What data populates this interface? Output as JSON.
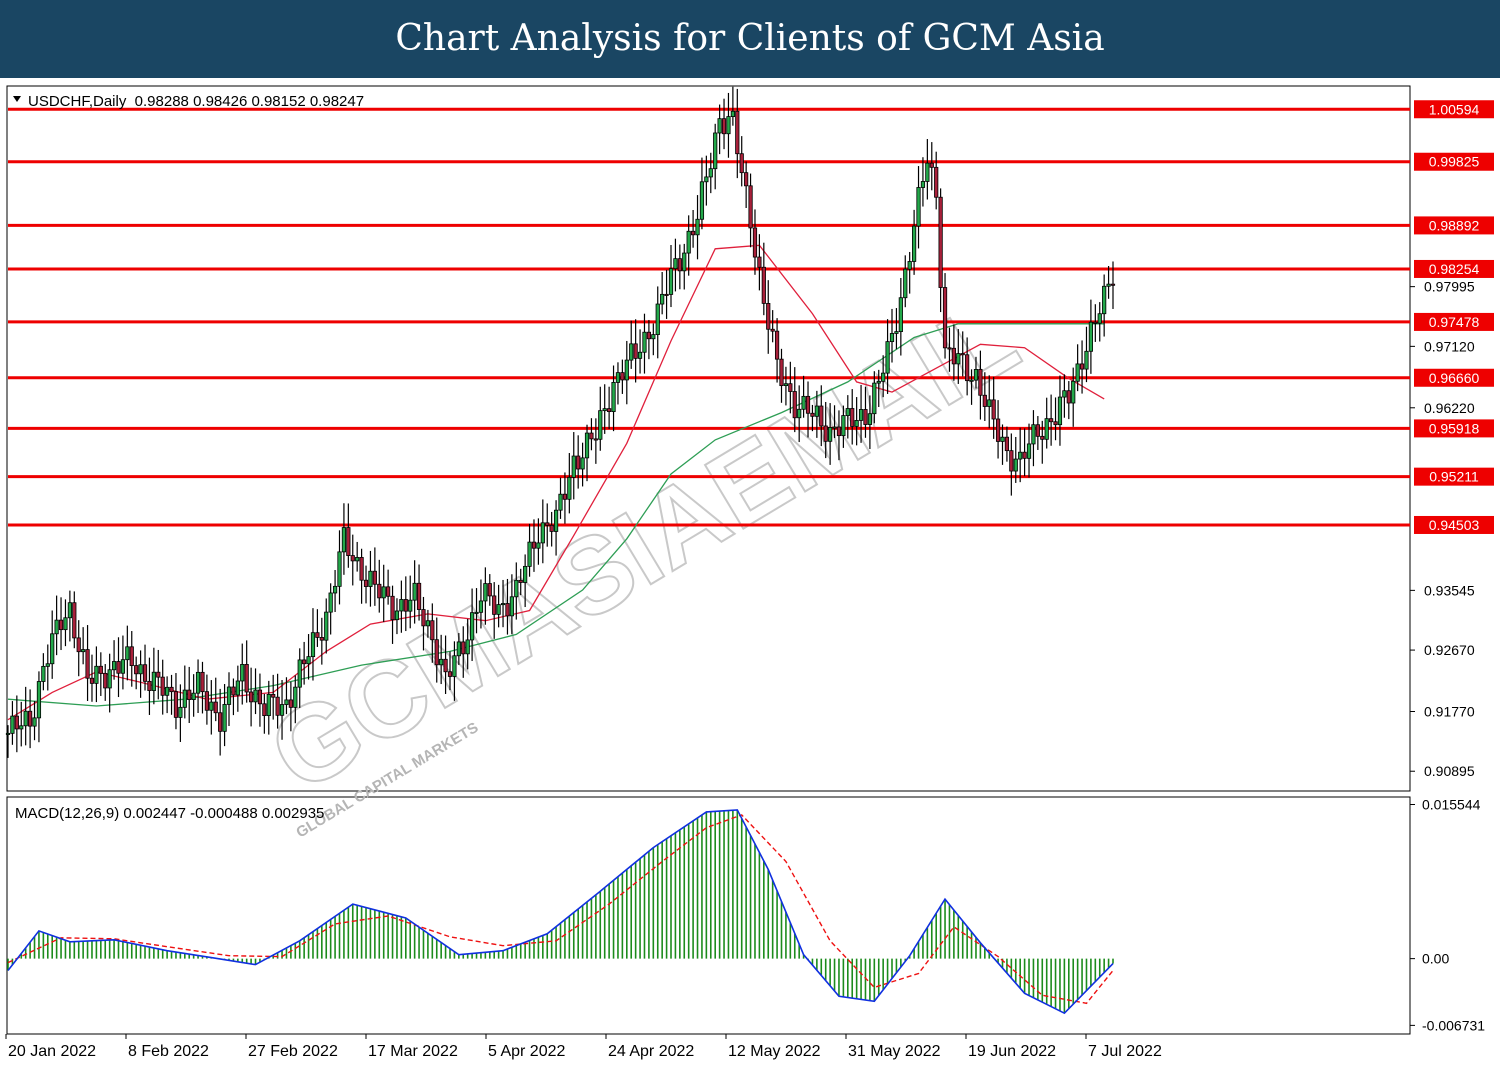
{
  "header": {
    "title": "Chart Analysis for Clients of GCM Asia"
  },
  "main_chart": {
    "symbol_info": "USDCHF,Daily  0.98288 0.98426 0.98152 0.98247",
    "price_range": [
      0.9062,
      1.0092
    ]
  },
  "macd_panel": {
    "info": "MACD(12,26,9) 0.002447 -0.000488 0.002935",
    "range": [
      -0.0075,
      0.0162
    ]
  },
  "watermark": {
    "text": "GCMASIAEMAIL",
    "subtext": "GLOBAL CAPITAL MARKETS"
  },
  "chart_data": {
    "type": "candlestick",
    "title": "USDCHF,Daily",
    "ohlc": [
      "0.98288",
      "0.98426",
      "0.98152",
      "0.98247"
    ],
    "x_labels": [
      "20 Jan 2022",
      "8 Feb 2022",
      "27 Feb 2022",
      "17 Mar 2022",
      "5 Apr 2022",
      "24 Apr 2022",
      "12 May 2022",
      "31 May 2022",
      "19 Jun 2022",
      "7 Jul 2022"
    ],
    "y_ticks": [
      "0.97995",
      "0.97120",
      "0.96220",
      "0.93545",
      "0.92670",
      "0.91770",
      "0.90895"
    ],
    "levels": [
      {
        "label": "1.00594",
        "value": 1.00594
      },
      {
        "label": "0.99825",
        "value": 0.99825
      },
      {
        "label": "0.98892",
        "value": 0.98892
      },
      {
        "label": "0.98254",
        "value": 0.98254
      },
      {
        "label": "0.97478",
        "value": 0.97478
      },
      {
        "label": "0.96660",
        "value": 0.9666
      },
      {
        "label": "0.95918",
        "value": 0.95918
      },
      {
        "label": "0.95211",
        "value": 0.95211
      },
      {
        "label": "0.94503",
        "value": 0.94503
      }
    ],
    "close_trace": [
      [
        0,
        0.9145
      ],
      [
        5,
        0.9165
      ],
      [
        8,
        0.924
      ],
      [
        12,
        0.931
      ],
      [
        14,
        0.933
      ],
      [
        18,
        0.922
      ],
      [
        23,
        0.924
      ],
      [
        28,
        0.925
      ],
      [
        33,
        0.922
      ],
      [
        38,
        0.919
      ],
      [
        43,
        0.921
      ],
      [
        48,
        0.917
      ],
      [
        53,
        0.923
      ],
      [
        58,
        0.918
      ],
      [
        63,
        0.919
      ],
      [
        68,
        0.926
      ],
      [
        72,
        0.932
      ],
      [
        76,
        0.9425
      ],
      [
        79,
        0.9395
      ],
      [
        83,
        0.9355
      ],
      [
        88,
        0.933
      ],
      [
        92,
        0.934
      ],
      [
        96,
        0.929
      ],
      [
        99,
        0.922
      ],
      [
        103,
        0.928
      ],
      [
        107,
        0.9345
      ],
      [
        111,
        0.933
      ],
      [
        115,
        0.935
      ],
      [
        120,
        0.9445
      ],
      [
        124,
        0.9455
      ],
      [
        128,
        0.9545
      ],
      [
        133,
        0.958
      ],
      [
        137,
        0.966
      ],
      [
        142,
        0.97
      ],
      [
        147,
        0.976
      ],
      [
        151,
        0.983
      ],
      [
        156,
        0.99
      ],
      [
        159,
        0.9985
      ],
      [
        161,
        1.005
      ],
      [
        164,
        1.004
      ],
      [
        166,
        0.996
      ],
      [
        168,
        0.99
      ],
      [
        171,
        0.978
      ],
      [
        174,
        0.968
      ],
      [
        178,
        0.963
      ],
      [
        182,
        0.961
      ],
      [
        186,
        0.959
      ],
      [
        190,
        0.96
      ],
      [
        194,
        0.9615
      ],
      [
        197,
        0.9655
      ],
      [
        200,
        0.9725
      ],
      [
        204,
        0.985
      ],
      [
        206,
        0.992
      ],
      [
        208,
        0.999
      ],
      [
        210,
        0.994
      ],
      [
        212,
        0.97
      ],
      [
        215,
        0.969
      ],
      [
        219,
        0.967
      ],
      [
        222,
        0.961
      ],
      [
        226,
        0.956
      ],
      [
        229,
        0.954
      ],
      [
        233,
        0.959
      ],
      [
        237,
        0.961
      ],
      [
        240,
        0.964
      ],
      [
        243,
        0.97
      ],
      [
        246,
        0.9745
      ],
      [
        248,
        0.978
      ],
      [
        250,
        0.9825
      ]
    ],
    "ma_fast_trace": [
      [
        0,
        0.9165
      ],
      [
        10,
        0.9205
      ],
      [
        20,
        0.9235
      ],
      [
        30,
        0.922
      ],
      [
        45,
        0.9195
      ],
      [
        60,
        0.9205
      ],
      [
        72,
        0.9265
      ],
      [
        82,
        0.9305
      ],
      [
        95,
        0.932
      ],
      [
        108,
        0.931
      ],
      [
        118,
        0.9325
      ],
      [
        128,
        0.9435
      ],
      [
        140,
        0.957
      ],
      [
        150,
        0.972
      ],
      [
        160,
        0.9855
      ],
      [
        170,
        0.986
      ],
      [
        182,
        0.976
      ],
      [
        192,
        0.966
      ],
      [
        200,
        0.9645
      ],
      [
        210,
        0.968
      ],
      [
        220,
        0.9715
      ],
      [
        230,
        0.971
      ],
      [
        240,
        0.9665
      ],
      [
        248,
        0.9635
      ]
    ],
    "ma_slow_trace": [
      [
        0,
        0.9195
      ],
      [
        20,
        0.9185
      ],
      [
        40,
        0.9195
      ],
      [
        60,
        0.9215
      ],
      [
        80,
        0.9245
      ],
      [
        100,
        0.9265
      ],
      [
        115,
        0.929
      ],
      [
        130,
        0.9355
      ],
      [
        140,
        0.943
      ],
      [
        150,
        0.9525
      ],
      [
        160,
        0.9575
      ],
      [
        175,
        0.9615
      ],
      [
        190,
        0.966
      ],
      [
        205,
        0.9725
      ],
      [
        215,
        0.9745
      ],
      [
        225,
        0.9745
      ],
      [
        238,
        0.9745
      ],
      [
        248,
        0.9745
      ]
    ],
    "macd_ticks": [
      "0.015544",
      "0.00",
      "-0.006731"
    ],
    "macd_trace": [
      [
        0,
        -0.0012
      ],
      [
        7,
        0.0028
      ],
      [
        14,
        0.0017
      ],
      [
        24,
        0.0019
      ],
      [
        36,
        0.0008
      ],
      [
        46,
        0.0001
      ],
      [
        56,
        -0.0006
      ],
      [
        66,
        0.0018
      ],
      [
        78,
        0.0055
      ],
      [
        90,
        0.0041
      ],
      [
        102,
        0.0004
      ],
      [
        112,
        0.0008
      ],
      [
        122,
        0.0025
      ],
      [
        134,
        0.0068
      ],
      [
        146,
        0.0112
      ],
      [
        158,
        0.0148
      ],
      [
        165,
        0.015
      ],
      [
        172,
        0.009
      ],
      [
        180,
        0.0004
      ],
      [
        188,
        -0.0038
      ],
      [
        196,
        -0.0043
      ],
      [
        204,
        0.0003
      ],
      [
        212,
        0.006
      ],
      [
        220,
        0.0016
      ],
      [
        230,
        -0.0035
      ],
      [
        239,
        -0.0055
      ],
      [
        250,
        -0.0005
      ]
    ],
    "signal_trace": [
      [
        0,
        -0.0004
      ],
      [
        12,
        0.0021
      ],
      [
        24,
        0.002
      ],
      [
        36,
        0.0012
      ],
      [
        50,
        0.0003
      ],
      [
        62,
        0.0002
      ],
      [
        74,
        0.0035
      ],
      [
        86,
        0.0043
      ],
      [
        100,
        0.0022
      ],
      [
        112,
        0.0013
      ],
      [
        124,
        0.0018
      ],
      [
        136,
        0.0055
      ],
      [
        148,
        0.0098
      ],
      [
        158,
        0.0132
      ],
      [
        166,
        0.0145
      ],
      [
        176,
        0.0098
      ],
      [
        186,
        0.0018
      ],
      [
        196,
        -0.0029
      ],
      [
        206,
        -0.0015
      ],
      [
        214,
        0.0032
      ],
      [
        224,
        0.0002
      ],
      [
        234,
        -0.0037
      ],
      [
        244,
        -0.0045
      ],
      [
        250,
        -0.0012
      ]
    ]
  }
}
